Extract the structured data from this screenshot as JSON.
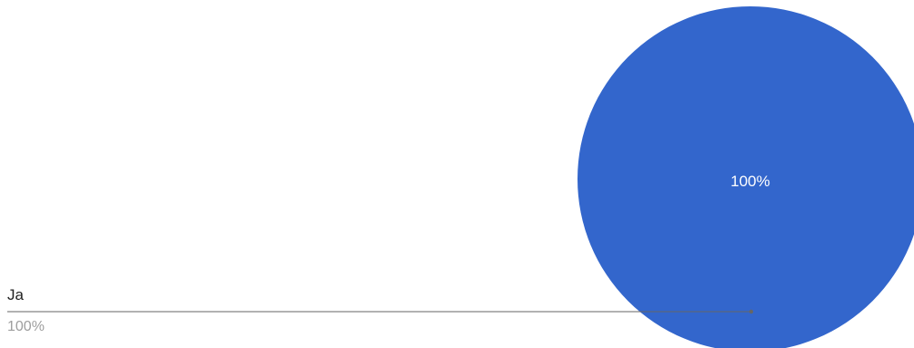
{
  "chart_data": {
    "type": "pie",
    "slices": [
      {
        "label": "Ja",
        "value": 100,
        "percent_label": "100%",
        "color": "#3366cc"
      }
    ],
    "slice_text": "100%",
    "legend_placement": "left-bottom",
    "leader_line_color": "#666666"
  }
}
